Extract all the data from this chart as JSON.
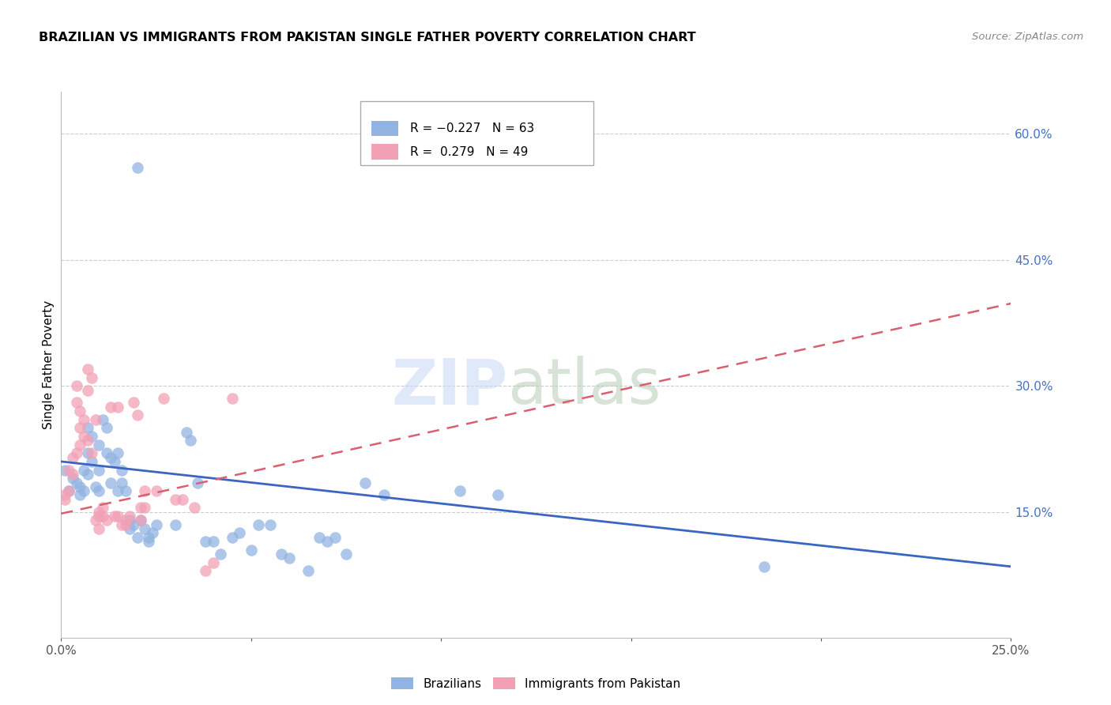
{
  "title": "BRAZILIAN VS IMMIGRANTS FROM PAKISTAN SINGLE FATHER POVERTY CORRELATION CHART",
  "source": "Source: ZipAtlas.com",
  "ylabel": "Single Father Poverty",
  "right_yticks": [
    "60.0%",
    "45.0%",
    "30.0%",
    "15.0%"
  ],
  "right_ytick_vals": [
    0.6,
    0.45,
    0.3,
    0.15
  ],
  "x_min": 0.0,
  "x_max": 0.25,
  "y_min": 0.0,
  "y_max": 0.65,
  "blue_color": "#92b4e3",
  "pink_color": "#f2a0b5",
  "trend_blue_color": "#3a65c0",
  "trend_pink_color": "#d96070",
  "right_axis_color": "#4472c4",
  "watermark_zip_color": "#c5d8f5",
  "watermark_atlas_color": "#b8ccb8",
  "blue_scatter": [
    [
      0.001,
      0.2
    ],
    [
      0.002,
      0.175
    ],
    [
      0.003,
      0.19
    ],
    [
      0.004,
      0.185
    ],
    [
      0.005,
      0.17
    ],
    [
      0.005,
      0.18
    ],
    [
      0.006,
      0.175
    ],
    [
      0.006,
      0.2
    ],
    [
      0.007,
      0.22
    ],
    [
      0.007,
      0.195
    ],
    [
      0.007,
      0.25
    ],
    [
      0.008,
      0.24
    ],
    [
      0.008,
      0.21
    ],
    [
      0.009,
      0.18
    ],
    [
      0.01,
      0.175
    ],
    [
      0.01,
      0.2
    ],
    [
      0.01,
      0.23
    ],
    [
      0.011,
      0.26
    ],
    [
      0.012,
      0.25
    ],
    [
      0.012,
      0.22
    ],
    [
      0.013,
      0.215
    ],
    [
      0.013,
      0.185
    ],
    [
      0.014,
      0.21
    ],
    [
      0.015,
      0.22
    ],
    [
      0.015,
      0.175
    ],
    [
      0.016,
      0.2
    ],
    [
      0.016,
      0.185
    ],
    [
      0.017,
      0.175
    ],
    [
      0.018,
      0.14
    ],
    [
      0.018,
      0.13
    ],
    [
      0.019,
      0.135
    ],
    [
      0.02,
      0.12
    ],
    [
      0.021,
      0.14
    ],
    [
      0.022,
      0.13
    ],
    [
      0.023,
      0.115
    ],
    [
      0.023,
      0.12
    ],
    [
      0.024,
      0.125
    ],
    [
      0.025,
      0.135
    ],
    [
      0.03,
      0.135
    ],
    [
      0.033,
      0.245
    ],
    [
      0.034,
      0.235
    ],
    [
      0.036,
      0.185
    ],
    [
      0.038,
      0.115
    ],
    [
      0.04,
      0.115
    ],
    [
      0.042,
      0.1
    ],
    [
      0.045,
      0.12
    ],
    [
      0.047,
      0.125
    ],
    [
      0.05,
      0.105
    ],
    [
      0.052,
      0.135
    ],
    [
      0.055,
      0.135
    ],
    [
      0.058,
      0.1
    ],
    [
      0.06,
      0.095
    ],
    [
      0.065,
      0.08
    ],
    [
      0.068,
      0.12
    ],
    [
      0.07,
      0.115
    ],
    [
      0.072,
      0.12
    ],
    [
      0.075,
      0.1
    ],
    [
      0.08,
      0.185
    ],
    [
      0.085,
      0.17
    ],
    [
      0.105,
      0.175
    ],
    [
      0.115,
      0.17
    ],
    [
      0.185,
      0.085
    ],
    [
      0.02,
      0.56
    ]
  ],
  "pink_scatter": [
    [
      0.001,
      0.165
    ],
    [
      0.001,
      0.17
    ],
    [
      0.002,
      0.2
    ],
    [
      0.002,
      0.175
    ],
    [
      0.003,
      0.195
    ],
    [
      0.003,
      0.215
    ],
    [
      0.004,
      0.22
    ],
    [
      0.004,
      0.3
    ],
    [
      0.004,
      0.28
    ],
    [
      0.005,
      0.25
    ],
    [
      0.005,
      0.27
    ],
    [
      0.005,
      0.23
    ],
    [
      0.006,
      0.26
    ],
    [
      0.006,
      0.24
    ],
    [
      0.007,
      0.235
    ],
    [
      0.007,
      0.32
    ],
    [
      0.007,
      0.295
    ],
    [
      0.008,
      0.31
    ],
    [
      0.008,
      0.22
    ],
    [
      0.009,
      0.26
    ],
    [
      0.009,
      0.14
    ],
    [
      0.01,
      0.15
    ],
    [
      0.01,
      0.145
    ],
    [
      0.01,
      0.13
    ],
    [
      0.011,
      0.145
    ],
    [
      0.011,
      0.155
    ],
    [
      0.012,
      0.14
    ],
    [
      0.013,
      0.275
    ],
    [
      0.014,
      0.145
    ],
    [
      0.015,
      0.275
    ],
    [
      0.015,
      0.145
    ],
    [
      0.016,
      0.135
    ],
    [
      0.017,
      0.14
    ],
    [
      0.017,
      0.135
    ],
    [
      0.018,
      0.145
    ],
    [
      0.019,
      0.28
    ],
    [
      0.02,
      0.265
    ],
    [
      0.021,
      0.155
    ],
    [
      0.021,
      0.14
    ],
    [
      0.022,
      0.155
    ],
    [
      0.022,
      0.175
    ],
    [
      0.025,
      0.175
    ],
    [
      0.027,
      0.285
    ],
    [
      0.03,
      0.165
    ],
    [
      0.032,
      0.165
    ],
    [
      0.035,
      0.155
    ],
    [
      0.038,
      0.08
    ],
    [
      0.04,
      0.09
    ],
    [
      0.045,
      0.285
    ]
  ],
  "blue_trend_x": [
    0.0,
    0.25
  ],
  "blue_trend_y": [
    0.21,
    0.085
  ],
  "pink_trend_x": [
    0.0,
    0.25
  ],
  "pink_trend_y": [
    0.148,
    0.398
  ]
}
